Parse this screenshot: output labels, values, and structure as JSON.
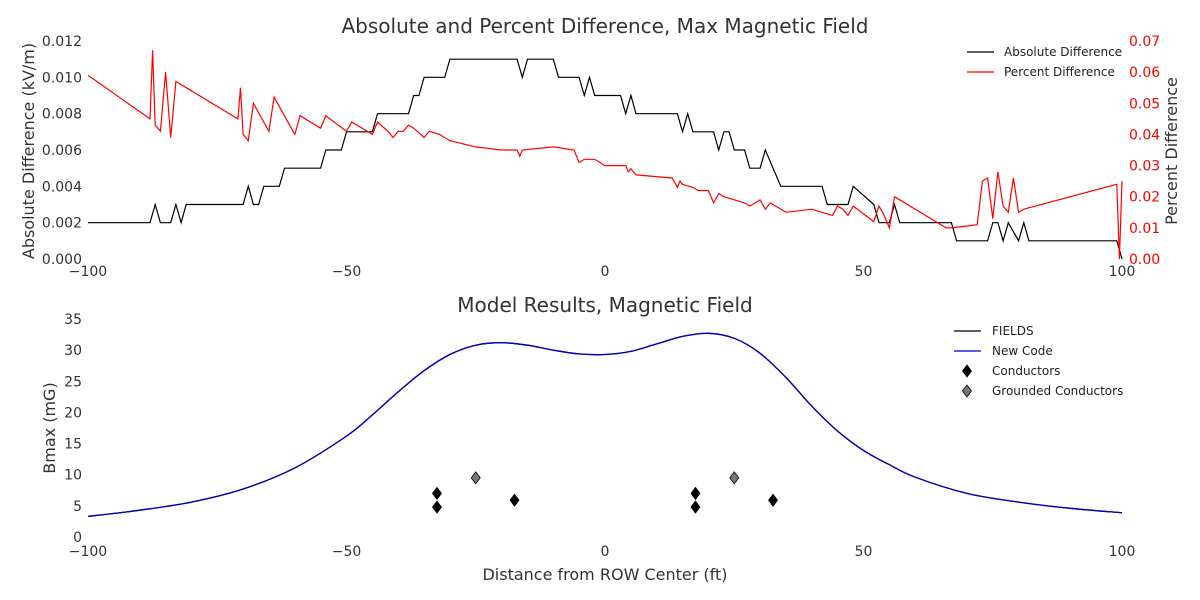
{
  "chart_data": [
    {
      "type": "line",
      "title": "Absolute and Percent Difference, Max Magnetic Field",
      "xlabel": "",
      "ylabel": "Absolute Difference (kV/m)",
      "y2label": "Percent Difference",
      "xlim": [
        -100,
        100
      ],
      "ylim": [
        0,
        0.012
      ],
      "y2lim": [
        0,
        0.07
      ],
      "xticks": [
        "−100",
        "−50",
        "0",
        "50",
        "100"
      ],
      "yticks": [
        "0.000",
        "0.002",
        "0.004",
        "0.006",
        "0.008",
        "0.010",
        "0.012"
      ],
      "y2ticks": [
        "0.00",
        "0.01",
        "0.02",
        "0.03",
        "0.04",
        "0.05",
        "0.06",
        "0.07"
      ],
      "grid": false,
      "legend_position": "top-right",
      "colors": {
        "absolute": "#000000",
        "percent": "#ff0000"
      },
      "series": [
        {
          "name": "Absolute Difference",
          "axis": "left",
          "x": [
            -100,
            -88,
            -87,
            -86,
            -84,
            -83,
            -82,
            -81,
            -80,
            -70,
            -69,
            -68,
            -67,
            -66,
            -63,
            -62,
            -55,
            -54,
            -51,
            -50,
            -45,
            -44,
            -38,
            -37,
            -36,
            -35,
            -34,
            -31,
            -30,
            -17,
            -16,
            -15,
            -10,
            -9,
            -5,
            -4,
            -3,
            -2,
            -1,
            3,
            4,
            5,
            6,
            7,
            14,
            15,
            16,
            17,
            21,
            22,
            23,
            24,
            25,
            26,
            27,
            28,
            29,
            30,
            31,
            34,
            35,
            42,
            43,
            47,
            48,
            52,
            53,
            55,
            56,
            57,
            58,
            67,
            68,
            74,
            75,
            76,
            77,
            78,
            80,
            81,
            82,
            99,
            100
          ],
          "values": [
            0.002,
            0.002,
            0.003,
            0.002,
            0.002,
            0.003,
            0.002,
            0.003,
            0.003,
            0.003,
            0.004,
            0.003,
            0.003,
            0.004,
            0.004,
            0.005,
            0.005,
            0.006,
            0.006,
            0.007,
            0.007,
            0.008,
            0.008,
            0.009,
            0.009,
            0.01,
            0.01,
            0.01,
            0.011,
            0.011,
            0.01,
            0.011,
            0.011,
            0.01,
            0.01,
            0.009,
            0.01,
            0.009,
            0.009,
            0.009,
            0.008,
            0.009,
            0.008,
            0.008,
            0.008,
            0.007,
            0.008,
            0.007,
            0.007,
            0.006,
            0.007,
            0.007,
            0.006,
            0.006,
            0.006,
            0.005,
            0.005,
            0.005,
            0.006,
            0.004,
            0.004,
            0.004,
            0.003,
            0.003,
            0.004,
            0.003,
            0.002,
            0.002,
            0.003,
            0.002,
            0.002,
            0.002,
            0.001,
            0.001,
            0.002,
            0.002,
            0.001,
            0.002,
            0.001,
            0.002,
            0.001,
            0.001,
            0.0
          ]
        },
        {
          "name": "Percent Difference",
          "axis": "right",
          "x": [
            -100,
            -88,
            -87.5,
            -87,
            -86,
            -85,
            -84,
            -83,
            -82,
            -81,
            -71,
            -70.5,
            -70,
            -69,
            -68,
            -65,
            -64,
            -60,
            -59,
            -55,
            -54,
            -50,
            -49,
            -45,
            -44,
            -42,
            -41,
            -40,
            -39,
            -38,
            -37,
            -35,
            -34,
            -32,
            -30,
            -25,
            -20,
            -17,
            -16.5,
            -16,
            -10,
            -6,
            -5,
            -4,
            -2,
            0,
            2,
            4,
            4.5,
            5,
            6,
            13,
            14,
            14.5,
            15,
            17,
            18,
            20,
            21,
            22,
            23,
            27,
            28,
            30,
            31,
            32,
            33,
            35,
            40,
            44,
            45,
            46,
            47,
            48,
            52,
            53,
            54,
            55,
            56,
            66,
            67,
            72,
            73,
            74,
            75,
            76,
            77,
            78,
            79,
            80,
            81,
            99,
            99.5,
            100
          ],
          "values": [
            0.059,
            0.045,
            0.067,
            0.043,
            0.041,
            0.06,
            0.039,
            0.057,
            0.056,
            0.055,
            0.045,
            0.055,
            0.04,
            0.038,
            0.05,
            0.041,
            0.052,
            0.04,
            0.046,
            0.042,
            0.046,
            0.041,
            0.044,
            0.04,
            0.044,
            0.041,
            0.039,
            0.041,
            0.041,
            0.043,
            0.042,
            0.039,
            0.041,
            0.04,
            0.038,
            0.036,
            0.035,
            0.035,
            0.033,
            0.035,
            0.036,
            0.035,
            0.031,
            0.032,
            0.032,
            0.03,
            0.03,
            0.03,
            0.028,
            0.029,
            0.027,
            0.026,
            0.023,
            0.025,
            0.024,
            0.023,
            0.022,
            0.022,
            0.018,
            0.021,
            0.02,
            0.018,
            0.017,
            0.019,
            0.016,
            0.018,
            0.017,
            0.015,
            0.016,
            0.014,
            0.017,
            0.016,
            0.014,
            0.017,
            0.012,
            0.017,
            0.014,
            0.01,
            0.02,
            0.01,
            0.01,
            0.011,
            0.025,
            0.026,
            0.013,
            0.028,
            0.017,
            0.015,
            0.026,
            0.015,
            0.016,
            0.024,
            0.0,
            0.025
          ]
        }
      ]
    },
    {
      "type": "line",
      "title": "Model Results, Magnetic Field",
      "xlabel": "Distance from ROW Center (ft)",
      "ylabel": "Bmax (mG)",
      "xlim": [
        -100,
        100
      ],
      "ylim": [
        0,
        35
      ],
      "xticks": [
        "−100",
        "−50",
        "0",
        "50",
        "100"
      ],
      "yticks": [
        "0",
        "5",
        "10",
        "15",
        "20",
        "25",
        "30",
        "35"
      ],
      "grid": false,
      "legend_position": "top-right",
      "colors": {
        "fields": "#000000",
        "new_code": "#0000cc",
        "conductors": "#000000",
        "grounded": "#777777"
      },
      "series": [
        {
          "name": "FIELDS",
          "x": [
            -100,
            -90,
            -80,
            -70,
            -60,
            -50,
            -45,
            -40,
            -35,
            -30,
            -25,
            -20,
            -15,
            -10,
            -5,
            0,
            5,
            10,
            15,
            20,
            25,
            30,
            35,
            40,
            45,
            50,
            55,
            60,
            70,
            80,
            90,
            100
          ],
          "values": [
            3.3,
            4.3,
            5.6,
            7.7,
            11.1,
            16.2,
            19.6,
            23.3,
            26.7,
            29.3,
            30.8,
            31.2,
            30.8,
            30.0,
            29.4,
            29.3,
            29.8,
            31.0,
            32.2,
            32.7,
            31.9,
            29.5,
            25.6,
            21.0,
            17.0,
            13.9,
            11.6,
            9.6,
            7.0,
            5.6,
            4.6,
            3.9
          ]
        },
        {
          "name": "New Code",
          "x": [
            -100,
            -90,
            -80,
            -70,
            -60,
            -50,
            -45,
            -40,
            -35,
            -30,
            -25,
            -20,
            -15,
            -10,
            -5,
            0,
            5,
            10,
            15,
            20,
            25,
            30,
            35,
            40,
            45,
            50,
            55,
            60,
            70,
            80,
            90,
            100
          ],
          "values": [
            3.3,
            4.3,
            5.6,
            7.7,
            11.1,
            16.2,
            19.6,
            23.3,
            26.7,
            29.3,
            30.8,
            31.2,
            30.8,
            30.0,
            29.4,
            29.3,
            29.8,
            31.0,
            32.2,
            32.7,
            31.9,
            29.5,
            25.6,
            21.0,
            17.0,
            13.9,
            11.6,
            9.6,
            7.0,
            5.6,
            4.6,
            3.9
          ]
        }
      ],
      "markers": [
        {
          "name": "Conductors",
          "points": [
            [
              -32.5,
              7.0
            ],
            [
              -32.5,
              4.8
            ],
            [
              -17.5,
              5.9
            ],
            [
              17.5,
              7.0
            ],
            [
              17.5,
              4.8
            ],
            [
              32.5,
              5.9
            ]
          ]
        },
        {
          "name": "Grounded Conductors",
          "points": [
            [
              -25,
              9.5
            ],
            [
              25,
              9.5
            ]
          ]
        }
      ]
    }
  ]
}
